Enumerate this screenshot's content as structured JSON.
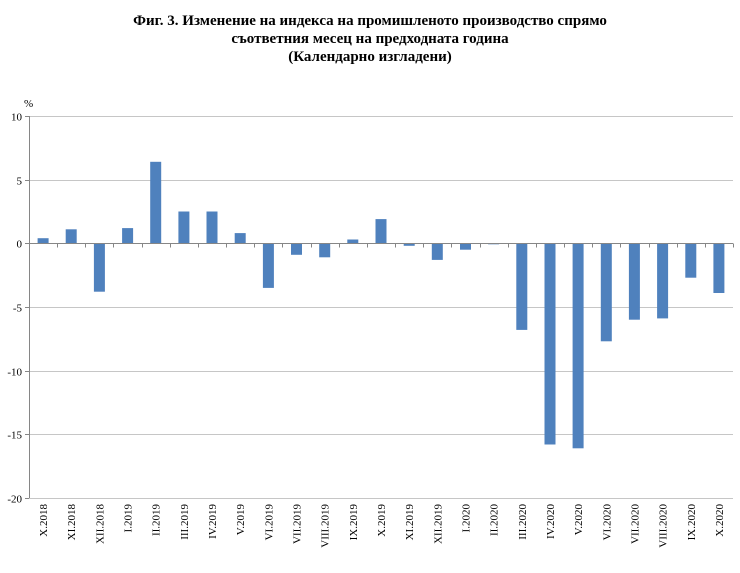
{
  "title_lines": [
    "Фиг. 3. Изменение на индекса на промишленото производство спрямо",
    "съответния месец на предходната година",
    "(Календарно изгладени)"
  ],
  "chart_data": {
    "type": "bar",
    "ylabel": "%",
    "ylim": [
      -20,
      10
    ],
    "yticks": [
      10,
      5,
      0,
      -5,
      -10,
      -15,
      -20
    ],
    "grid": true,
    "bar_color": "#4f81bd",
    "categories": [
      "X.2018",
      "XI.2018",
      "XII.2018",
      "I.2019",
      "II.2019",
      "III.2019",
      "IV.2019",
      "V.2019",
      "VI.2019",
      "VII.2019",
      "VIII.2019",
      "IX.2019",
      "X.2019",
      "XI.2019",
      "XII.2019",
      "I.2020",
      "II.2020",
      "III.2020",
      "IV.2020",
      "V.2020",
      "VI.2020",
      "VII.2020",
      "VIII.2020",
      "IX.2020",
      "X.2020"
    ],
    "values": [
      0.4,
      1.1,
      -3.8,
      1.2,
      6.4,
      2.5,
      2.5,
      0.8,
      -3.5,
      -0.9,
      -1.1,
      0.3,
      1.9,
      -0.2,
      -1.3,
      -0.5,
      -0.05,
      -6.8,
      -15.8,
      -16.1,
      -7.7,
      -6.0,
      -5.9,
      -2.7,
      -3.9
    ]
  }
}
